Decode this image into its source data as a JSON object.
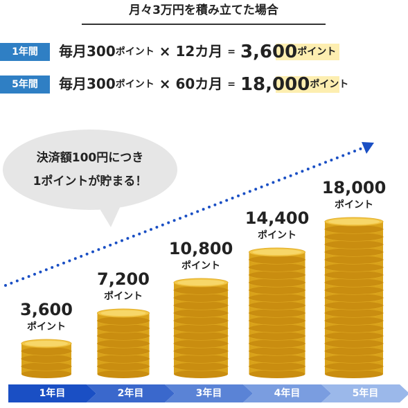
{
  "title": "月々3万円を積み立てた場合",
  "rows": [
    {
      "badge": "1年間",
      "monthly": "毎月300",
      "point": "ポイント",
      "times": "×",
      "months": "12カ月",
      "equals": "=",
      "result": "3,600",
      "unit": "ポイント"
    },
    {
      "badge": "5年間",
      "monthly": "毎月300",
      "point": "ポイント",
      "times": "×",
      "months": "60カ月",
      "equals": "=",
      "result": "18,000",
      "unit": "ポイント"
    }
  ],
  "bubble": [
    "決済額100円につき",
    "1ポイントが貯まる！"
  ],
  "stacks": [
    {
      "value": "3,600",
      "unit": "ポイント",
      "year": "1年目"
    },
    {
      "value": "7,200",
      "unit": "ポイント",
      "year": "2年目"
    },
    {
      "value": "10,800",
      "unit": "ポイント",
      "year": "3年目"
    },
    {
      "value": "14,400",
      "unit": "ポイント",
      "year": "4年目"
    },
    {
      "value": "18,000",
      "unit": "ポイント",
      "year": "5年目"
    }
  ]
}
